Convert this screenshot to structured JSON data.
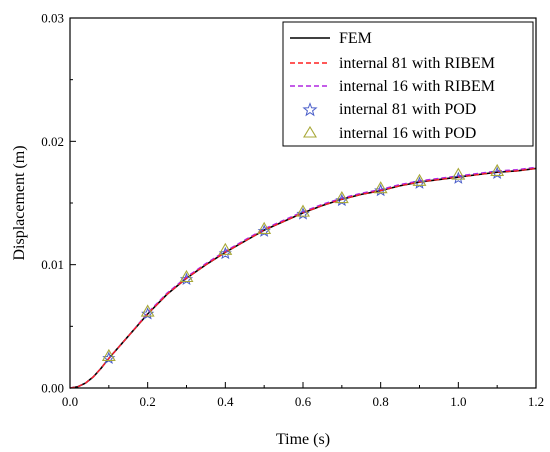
{
  "chart_data": {
    "type": "line",
    "title": "",
    "xlabel": "Time (s)",
    "ylabel": "Displacement (m)",
    "xlim": [
      0.0,
      1.2
    ],
    "ylim": [
      0.0,
      0.03
    ],
    "x_ticks": [
      "0.0",
      "0.2",
      "0.4",
      "0.6",
      "0.8",
      "1.0",
      "1.2"
    ],
    "y_ticks": [
      "0.00",
      "0.01",
      "0.02",
      "0.03"
    ],
    "grid": false,
    "legend_position": "top-right",
    "series": [
      {
        "name": "FEM",
        "style": "solid-line",
        "color": "#000000",
        "x": [
          0.0,
          0.02,
          0.04,
          0.06,
          0.08,
          0.1,
          0.15,
          0.2,
          0.25,
          0.3,
          0.35,
          0.4,
          0.45,
          0.5,
          0.55,
          0.6,
          0.65,
          0.7,
          0.75,
          0.8,
          0.85,
          0.9,
          0.95,
          1.0,
          1.05,
          1.1,
          1.15,
          1.2
        ],
        "y": [
          0.0,
          0.0001,
          0.0004,
          0.0009,
          0.0016,
          0.0024,
          0.0042,
          0.006,
          0.0076,
          0.0089,
          0.01,
          0.011,
          0.0119,
          0.0128,
          0.0135,
          0.0142,
          0.0148,
          0.0153,
          0.0157,
          0.016,
          0.0164,
          0.0167,
          0.0169,
          0.0171,
          0.0173,
          0.0175,
          0.0176,
          0.0178
        ]
      },
      {
        "name": "internal 81 with RIBEM",
        "style": "dashed-line",
        "color": "#ff2020",
        "x": [
          0.0,
          0.02,
          0.04,
          0.06,
          0.08,
          0.1,
          0.15,
          0.2,
          0.25,
          0.3,
          0.35,
          0.4,
          0.45,
          0.5,
          0.55,
          0.6,
          0.65,
          0.7,
          0.75,
          0.8,
          0.85,
          0.9,
          0.95,
          1.0,
          1.05,
          1.1,
          1.15,
          1.2
        ],
        "y": [
          0.0,
          0.0001,
          0.0004,
          0.0009,
          0.0016,
          0.0024,
          0.0042,
          0.006,
          0.0076,
          0.0089,
          0.01,
          0.011,
          0.0119,
          0.0128,
          0.0135,
          0.0142,
          0.0148,
          0.0153,
          0.0157,
          0.016,
          0.0164,
          0.0167,
          0.0169,
          0.0171,
          0.0173,
          0.0175,
          0.0176,
          0.0178
        ]
      },
      {
        "name": "internal 16 with RIBEM",
        "style": "dashed-line",
        "color": "#b026e0",
        "x": [
          0.0,
          0.02,
          0.04,
          0.06,
          0.08,
          0.1,
          0.15,
          0.2,
          0.25,
          0.3,
          0.35,
          0.4,
          0.45,
          0.5,
          0.55,
          0.6,
          0.65,
          0.7,
          0.75,
          0.8,
          0.85,
          0.9,
          0.95,
          1.0,
          1.05,
          1.1,
          1.15,
          1.2
        ],
        "y": [
          0.0,
          0.0001,
          0.0004,
          0.0009,
          0.0016,
          0.0024,
          0.0042,
          0.0061,
          0.0077,
          0.009,
          0.0101,
          0.0111,
          0.012,
          0.0129,
          0.0136,
          0.0143,
          0.0149,
          0.0154,
          0.0158,
          0.0161,
          0.0165,
          0.0168,
          0.017,
          0.0172,
          0.0174,
          0.0176,
          0.0177,
          0.0179
        ]
      },
      {
        "name": "internal 81 with POD",
        "style": "star-marker",
        "color": "#4a5ec9",
        "x": [
          0.1,
          0.2,
          0.3,
          0.4,
          0.5,
          0.6,
          0.7,
          0.8,
          0.9,
          1.0,
          1.1
        ],
        "y": [
          0.0024,
          0.006,
          0.0088,
          0.0109,
          0.0127,
          0.0141,
          0.0152,
          0.016,
          0.0166,
          0.017,
          0.0174
        ]
      },
      {
        "name": "internal 16 with POD",
        "style": "triangle-marker",
        "color": "#a8a838",
        "x": [
          0.1,
          0.2,
          0.3,
          0.4,
          0.5,
          0.6,
          0.7,
          0.8,
          0.9,
          1.0,
          1.1
        ],
        "y": [
          0.0026,
          0.0062,
          0.009,
          0.0112,
          0.0129,
          0.0143,
          0.0154,
          0.0162,
          0.0168,
          0.0173,
          0.0176
        ]
      }
    ]
  }
}
